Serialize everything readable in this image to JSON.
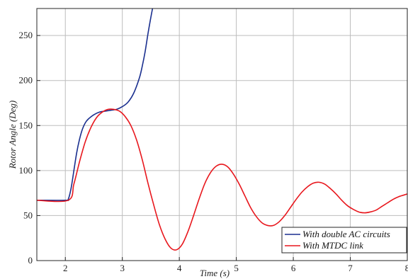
{
  "chart_data": {
    "type": "line",
    "xlabel": "Time (s)",
    "ylabel": "Rotor Angle (Deg)",
    "xlim": [
      1.5,
      8
    ],
    "ylim": [
      0,
      280
    ],
    "xticks": [
      2,
      3,
      4,
      5,
      6,
      7,
      8
    ],
    "yticks": [
      0,
      50,
      100,
      150,
      200,
      250
    ],
    "grid": true,
    "legend_position": "bottom-right",
    "series": [
      {
        "name": "With double AC circuits",
        "color": "#1a2f8f",
        "x": [
          1.5,
          2.0,
          2.05,
          2.1,
          2.15,
          2.2,
          2.25,
          2.3,
          2.35,
          2.4,
          2.5,
          2.6,
          2.7,
          2.8,
          2.9,
          3.0,
          3.1,
          3.2,
          3.3,
          3.35,
          3.4,
          3.45,
          3.5,
          3.53
        ],
        "y": [
          67,
          67,
          68,
          80,
          100,
          120,
          135,
          146,
          153,
          157,
          162,
          165,
          166,
          167,
          168,
          171,
          176,
          186,
          203,
          216,
          232,
          252,
          270,
          280
        ]
      },
      {
        "name": "With MTDC link",
        "color": "#e8171d",
        "x": [
          1.5,
          2.05,
          2.15,
          2.25,
          2.35,
          2.45,
          2.55,
          2.65,
          2.75,
          2.85,
          2.95,
          3.05,
          3.15,
          3.25,
          3.35,
          3.45,
          3.55,
          3.65,
          3.75,
          3.85,
          3.95,
          4.05,
          4.15,
          4.25,
          4.35,
          4.45,
          4.55,
          4.65,
          4.75,
          4.85,
          4.95,
          5.05,
          5.15,
          5.25,
          5.35,
          5.45,
          5.55,
          5.65,
          5.75,
          5.85,
          5.95,
          6.05,
          6.15,
          6.25,
          6.35,
          6.45,
          6.55,
          6.65,
          6.75,
          6.85,
          6.95,
          7.05,
          7.15,
          7.25,
          7.35,
          7.45,
          7.55,
          7.65,
          7.75,
          7.85,
          7.95,
          8.0
        ],
        "y": [
          67,
          67,
          85,
          110,
          132,
          148,
          159,
          165,
          168,
          168,
          166,
          160,
          150,
          134,
          112,
          86,
          62,
          40,
          24,
          14,
          12,
          18,
          32,
          50,
          69,
          86,
          98,
          105,
          107,
          104,
          96,
          85,
          72,
          59,
          49,
          42,
          39,
          39,
          43,
          50,
          59,
          68,
          76,
          82,
          86,
          87,
          85,
          80,
          74,
          67,
          61,
          57,
          54,
          53,
          54,
          56,
          60,
          64,
          68,
          71,
          73,
          74
        ]
      }
    ]
  }
}
